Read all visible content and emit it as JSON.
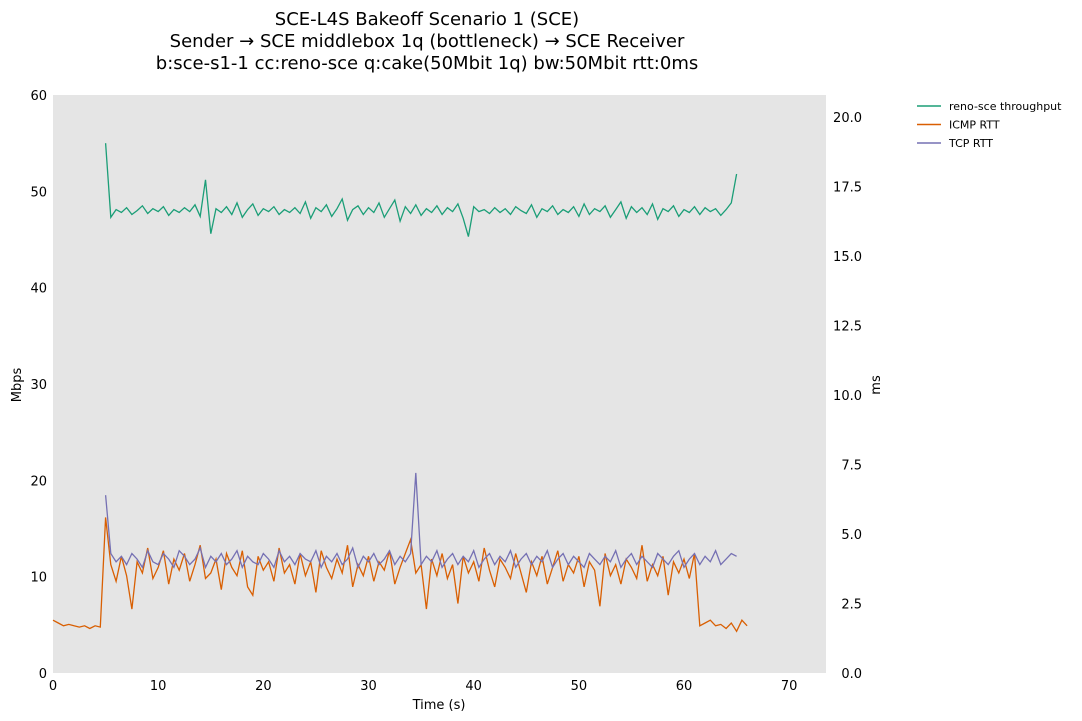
{
  "chart_data": {
    "type": "line",
    "title": [
      "SCE-L4S Bakeoff Scenario 1 (SCE)",
      "Sender → SCE middlebox 1q (bottleneck) → SCE Receiver",
      "b:sce-s1-1 cc:reno-sce q:cake(50Mbit 1q) bw:50Mbit rtt:0ms"
    ],
    "xlabel": "Time (s)",
    "ylabel": "Mbps",
    "y2label": "ms",
    "xlim": [
      0,
      73.5
    ],
    "ylim": [
      0,
      60
    ],
    "y2lim": [
      0,
      20.8
    ],
    "xticks": [
      0,
      10,
      20,
      30,
      40,
      50,
      60,
      70
    ],
    "yticks": [
      0,
      10,
      20,
      30,
      40,
      50,
      60
    ],
    "y2ticks": [
      "0.0",
      "2.5",
      "5.0",
      "7.5",
      "10.0",
      "12.5",
      "15.0",
      "17.5",
      "20.0"
    ],
    "grid": false,
    "legend_position": "outside-top-right",
    "series": [
      {
        "name": "reno-sce throughput",
        "axis": "left",
        "color": "#1b9e77",
        "x_start": 5.0,
        "x_step": 0.5,
        "values": [
          55.0,
          47.3,
          48.1,
          47.8,
          48.3,
          47.6,
          48.0,
          48.5,
          47.7,
          48.2,
          47.9,
          48.4,
          47.5,
          48.1,
          47.8,
          48.3,
          47.9,
          48.6,
          47.4,
          51.2,
          45.6,
          48.2,
          47.8,
          48.4,
          47.6,
          48.8,
          47.3,
          48.1,
          48.7,
          47.5,
          48.2,
          47.9,
          48.4,
          47.6,
          48.1,
          47.8,
          48.3,
          47.7,
          48.9,
          47.2,
          48.3,
          47.9,
          48.6,
          47.4,
          48.2,
          49.2,
          47.0,
          48.1,
          48.5,
          47.6,
          48.3,
          47.8,
          48.8,
          47.3,
          48.2,
          49.1,
          46.9,
          48.4,
          47.7,
          48.6,
          47.5,
          48.2,
          47.8,
          48.5,
          47.6,
          48.3,
          47.9,
          48.7,
          47.2,
          45.3,
          48.4,
          47.9,
          48.1,
          47.7,
          48.3,
          47.8,
          48.2,
          47.6,
          48.4,
          48.0,
          47.7,
          48.6,
          47.3,
          48.2,
          47.9,
          48.5,
          47.6,
          48.1,
          47.8,
          48.4,
          47.4,
          48.7,
          47.6,
          48.2,
          47.9,
          48.5,
          47.3,
          48.1,
          48.9,
          47.2,
          48.4,
          47.8,
          48.3,
          47.6,
          48.7,
          47.1,
          48.2,
          47.9,
          48.5,
          47.4,
          48.1,
          47.8,
          48.4,
          47.6,
          48.3,
          47.9,
          48.2,
          47.5,
          48.1,
          48.8,
          51.8
        ]
      },
      {
        "name": "ICMP RTT",
        "axis": "right",
        "color": "#d95f02",
        "x_start": 0,
        "x_step": 0.5,
        "values": [
          1.9,
          1.8,
          1.7,
          1.75,
          1.7,
          1.65,
          1.7,
          1.6,
          1.7,
          1.65,
          5.6,
          3.9,
          3.3,
          4.2,
          3.5,
          2.3,
          4.0,
          3.6,
          4.5,
          3.4,
          3.8,
          4.4,
          3.2,
          4.1,
          3.7,
          4.3,
          3.3,
          3.9,
          4.6,
          3.4,
          3.6,
          4.1,
          3.0,
          4.3,
          3.8,
          3.5,
          4.4,
          3.1,
          2.8,
          4.2,
          3.7,
          4.0,
          3.3,
          4.5,
          3.6,
          3.9,
          3.2,
          4.3,
          3.5,
          4.0,
          2.9,
          4.4,
          3.8,
          3.4,
          4.1,
          3.6,
          4.6,
          3.1,
          3.9,
          3.5,
          4.2,
          3.3,
          4.0,
          3.7,
          4.4,
          3.2,
          3.8,
          4.3,
          4.8,
          3.6,
          3.9,
          2.3,
          4.1,
          3.5,
          4.3,
          3.4,
          3.9,
          2.5,
          4.2,
          3.6,
          4.0,
          3.3,
          4.5,
          3.7,
          3.1,
          4.1,
          3.8,
          3.4,
          4.3,
          3.6,
          2.9,
          4.0,
          3.5,
          4.2,
          3.2,
          3.8,
          4.4,
          3.3,
          3.9,
          3.6,
          4.2,
          3.1,
          4.0,
          3.7,
          2.4,
          4.3,
          3.5,
          3.9,
          3.2,
          4.1,
          3.8,
          3.4,
          4.6,
          3.3,
          3.9,
          3.5,
          4.2,
          2.8,
          4.0,
          3.6,
          4.1,
          3.4,
          4.3,
          1.7,
          1.8,
          1.9,
          1.7,
          1.75,
          1.6,
          1.8,
          1.5,
          1.9,
          1.7
        ]
      },
      {
        "name": "TCP RTT",
        "axis": "right",
        "color": "#7570b3",
        "x_start": 5.0,
        "x_step": 0.5,
        "values": [
          6.4,
          4.3,
          4.0,
          4.2,
          3.9,
          4.3,
          4.1,
          3.8,
          4.4,
          4.0,
          3.9,
          4.3,
          4.1,
          3.8,
          4.4,
          4.2,
          3.9,
          4.1,
          4.5,
          3.8,
          4.2,
          4.0,
          4.3,
          3.9,
          4.1,
          4.4,
          3.8,
          4.2,
          4.0,
          3.9,
          4.3,
          4.1,
          3.8,
          4.4,
          4.0,
          4.2,
          3.9,
          4.3,
          4.1,
          4.0,
          4.4,
          3.8,
          4.2,
          4.0,
          4.3,
          3.9,
          4.1,
          4.5,
          3.8,
          4.2,
          4.0,
          4.3,
          3.9,
          4.1,
          4.4,
          3.9,
          4.2,
          4.0,
          4.3,
          7.2,
          3.9,
          4.2,
          4.0,
          4.4,
          3.8,
          4.1,
          4.3,
          3.9,
          4.2,
          4.0,
          4.4,
          3.8,
          4.1,
          4.3,
          3.9,
          4.2,
          4.0,
          4.4,
          3.8,
          4.1,
          4.3,
          3.9,
          4.2,
          4.0,
          4.4,
          3.8,
          4.1,
          4.3,
          3.9,
          4.2,
          4.0,
          3.8,
          4.3,
          4.1,
          3.9,
          4.2,
          4.0,
          4.4,
          3.8,
          4.1,
          4.3,
          3.9,
          4.2,
          4.0,
          3.8,
          4.3,
          4.1,
          3.9,
          4.2,
          4.4,
          3.8,
          4.1,
          4.3,
          3.9,
          4.2,
          4.0,
          4.4,
          3.9,
          4.1,
          4.3,
          4.2
        ]
      }
    ]
  }
}
